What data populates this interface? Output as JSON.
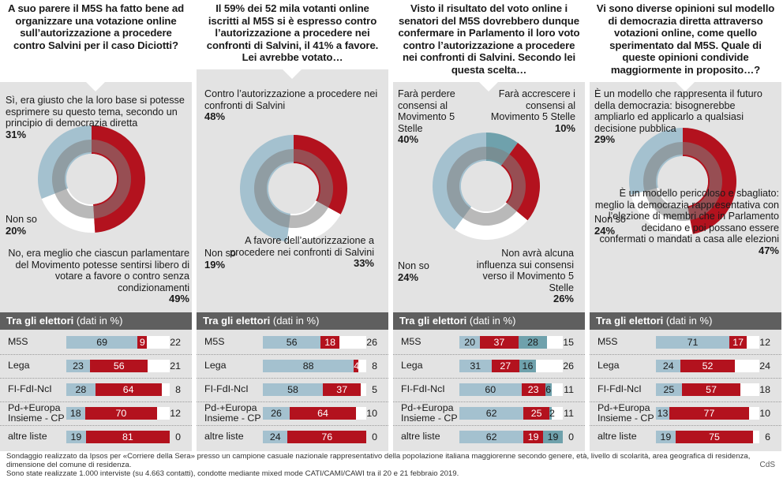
{
  "colors": {
    "red": "#b3121e",
    "light_blue": "#a4c1cf",
    "teal": "#6fa1ac",
    "panel_bg": "#e3e3e3",
    "header_bg": "#5f5f5f",
    "inner_ring": "#7f7f7f",
    "grey": "#cfcfcf"
  },
  "table_header": {
    "bold": "Tra gli elettori",
    "light": "(dati in %)"
  },
  "footer": {
    "line1": "Sondaggio realizzato da Ipsos per «Corriere della Sera» presso un campione casuale nazionale rappresentativo della popolazione italiana maggiorenne secondo genere, età, livello di scolarità, area geografica di residenza, dimensione del comune di residenza.",
    "line2": "Sono state realizzate 1.000 interviste (su 4.663 contatti), condotte mediante mixed mode CATI/CAMI/CAWI tra il 20 e 21 febbraio 2019.",
    "credit": "CdS"
  },
  "chart_data": [
    {
      "type": "pie",
      "title": "A suo parere il M5S ha fatto bene ad organizzare una votazione online sull’autorizzazione a procedere contro Salvini per il caso Diciotti?",
      "labels": [
        {
          "text": "Sì, era giusto che la loro base si potesse esprimere su questo tema, secondo un principio di democrazia diretta",
          "pct": "31%"
        },
        {
          "text": "No, era meglio che ciascun parlamentare del Movimento potesse sentirsi libero di votare a favore o contro senza condizionamenti",
          "pct": "49%"
        },
        {
          "text": "Non so",
          "pct": "20%"
        }
      ],
      "slices": [
        {
          "value": 49,
          "color": "#b3121e"
        },
        {
          "value": 20,
          "color": "#ffffff"
        },
        {
          "value": 31,
          "color": "#a4c1cf"
        }
      ],
      "table": {
        "rows": [
          {
            "name": "M5S",
            "values": [
              69,
              9
            ],
            "non_so": 22
          },
          {
            "name": "Lega",
            "values": [
              23,
              56
            ],
            "non_so": 21
          },
          {
            "name": "FI-FdI-NcI",
            "values": [
              28,
              64
            ],
            "non_so": 8
          },
          {
            "name": "Pd-+Europa Insieme - CP",
            "values": [
              18,
              70
            ],
            "non_so": 12
          },
          {
            "name": "altre liste",
            "values": [
              19,
              81
            ],
            "non_so": 0
          }
        ]
      }
    },
    {
      "type": "pie",
      "title": "Il 59% dei 52 mila votanti online iscritti al M5S si è espresso contro l’autorizzazione a procedere nei confronti di Salvini, il 41% a favore. Lei avrebbe votato…",
      "labels": [
        {
          "text": "Contro l’autorizzazione a procedere nei confronti di Salvini",
          "pct": "48%"
        },
        {
          "text": "A favore dell’autorizzazione a procedere nei confronti di Salvini",
          "pct": "33%"
        },
        {
          "text": "Non so",
          "pct": "19%"
        }
      ],
      "slices": [
        {
          "value": 33,
          "color": "#b3121e"
        },
        {
          "value": 19,
          "color": "#ffffff"
        },
        {
          "value": 48,
          "color": "#a4c1cf"
        }
      ],
      "table": {
        "rows": [
          {
            "name": "M5S",
            "values": [
              56,
              18
            ],
            "non_so": 26
          },
          {
            "name": "Lega",
            "values": [
              88,
              4
            ],
            "non_so": 8
          },
          {
            "name": "FI-FdI-NcI",
            "values": [
              58,
              37
            ],
            "non_so": 5
          },
          {
            "name": "Pd-+Europa Insieme - CP",
            "values": [
              26,
              64
            ],
            "non_so": 10
          },
          {
            "name": "altre liste",
            "values": [
              24,
              76
            ],
            "non_so": 0
          }
        ]
      }
    },
    {
      "type": "pie",
      "title": "Visto il risultato del voto online i senatori del M5S dovrebbero dunque confermare in Parlamento il loro voto contro l’autorizzazione a procedere nei confronti di Salvini. Secondo lei questa scelta…",
      "labels": [
        {
          "text": "Farà perdere consensi al Movimento 5 Stelle",
          "pct": "40%"
        },
        {
          "text": "Farà accrescere i consensi al Movimento 5 Stelle",
          "pct": "10%"
        },
        {
          "text": "Non avrà alcuna influenza sui consensi verso il Movimento 5 Stelle",
          "pct": "26%"
        },
        {
          "text": "Non so",
          "pct": "24%"
        }
      ],
      "slices": [
        {
          "value": 10,
          "color": "#6fa1ac"
        },
        {
          "value": 26,
          "color": "#b3121e"
        },
        {
          "value": 24,
          "color": "#ffffff"
        },
        {
          "value": 40,
          "color": "#a4c1cf"
        }
      ],
      "table": {
        "three": true,
        "rows": [
          {
            "name": "M5S",
            "values": [
              20,
              37,
              28
            ],
            "non_so": 15
          },
          {
            "name": "Lega",
            "values": [
              31,
              27,
              16
            ],
            "non_so": 26
          },
          {
            "name": "FI-FdI-NcI",
            "values": [
              60,
              23,
              6
            ],
            "non_so": 11
          },
          {
            "name": "Pd-+Europa Insieme - CP",
            "values": [
              62,
              25,
              2
            ],
            "non_so": 11
          },
          {
            "name": "altre liste",
            "values": [
              62,
              19,
              19
            ],
            "non_so": 0
          }
        ]
      }
    },
    {
      "type": "pie",
      "title": "Vi sono diverse opinioni sul modello di democrazia diretta attraverso votazioni online, come quello sperimentato dal M5S. Quale di queste opinioni condivide maggiormente in proposito…?",
      "labels": [
        {
          "text": "È un modello che rappresenta il futuro della democrazia: bisognerebbe ampliarlo ed applicarlo a qualsiasi decisione pubblica",
          "pct": "29%"
        },
        {
          "text": "È un modello pericoloso e sbagliato: meglio la democrazia rappresentativa con l’elezione di membri che in Parlamento decidano e poi possano essere confermati o mandati a casa alle elezioni",
          "pct": "47%"
        },
        {
          "text": "Non so",
          "pct": "24%"
        }
      ],
      "slices": [
        {
          "value": 47,
          "color": "#b3121e"
        },
        {
          "value": 24,
          "color": "#ffffff"
        },
        {
          "value": 29,
          "color": "#a4c1cf"
        }
      ],
      "table": {
        "rows": [
          {
            "name": "M5S",
            "values": [
              71,
              17
            ],
            "non_so": 12
          },
          {
            "name": "Lega",
            "values": [
              24,
              52
            ],
            "non_so": 24
          },
          {
            "name": "FI-FdI-NcI",
            "values": [
              25,
              57
            ],
            "non_so": 18
          },
          {
            "name": "Pd-+Europa Insieme - CP",
            "values": [
              13,
              77
            ],
            "non_so": 10
          },
          {
            "name": "altre liste",
            "values": [
              19,
              75
            ],
            "non_so": 6
          }
        ]
      }
    }
  ]
}
